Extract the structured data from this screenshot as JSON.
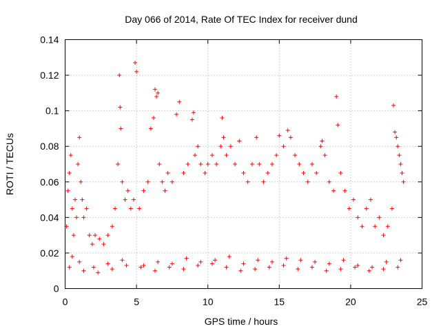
{
  "chart_data": {
    "type": "scatter",
    "title": "Day 066 of 2014, Rate Of TEC Index for receiver dund",
    "xlabel": "GPS time / hours",
    "ylabel": "ROTI / TECUs",
    "xlim": [
      0,
      25
    ],
    "ylim": [
      0,
      0.14
    ],
    "xticks": [
      0,
      5,
      10,
      15,
      20,
      25
    ],
    "xtick_labels": [
      "0",
      "5",
      "10",
      "15",
      "20",
      "25"
    ],
    "yticks": [
      0,
      0.02,
      0.04,
      0.06,
      0.08,
      0.1,
      0.12,
      0.14
    ],
    "ytick_labels": [
      "0",
      "0.02",
      "0.04",
      "0.06",
      "0.08",
      "0.1",
      "0.12",
      "0.14"
    ],
    "grid": true,
    "marker": "+",
    "series": [
      {
        "name": "ROTI",
        "color": "#ff0000",
        "x": [
          0.1,
          0.2,
          0.3,
          0.4,
          0.5,
          0.6,
          0.7,
          0.8,
          0.9,
          1.0,
          1.1,
          1.2,
          1.3,
          1.5,
          1.7,
          1.9,
          2.1,
          2.4,
          2.7,
          3.0,
          3.3,
          3.5,
          3.7,
          3.8,
          3.85,
          3.9,
          4.0,
          4.2,
          4.4,
          4.6,
          4.8,
          4.9,
          5.0,
          5.2,
          5.5,
          5.8,
          6.0,
          6.2,
          6.3,
          6.4,
          6.5,
          6.6,
          6.8,
          7.0,
          7.2,
          7.5,
          7.8,
          8.0,
          8.3,
          8.6,
          8.9,
          9.0,
          9.1,
          9.3,
          9.5,
          9.8,
          10.0,
          10.3,
          10.6,
          10.9,
          11.0,
          11.1,
          11.3,
          11.6,
          11.9,
          12.2,
          12.5,
          12.8,
          13.1,
          13.4,
          13.6,
          13.9,
          14.2,
          14.5,
          14.8,
          15.0,
          15.3,
          15.6,
          15.8,
          16.1,
          16.4,
          16.7,
          17.0,
          17.3,
          17.6,
          17.9,
          18.0,
          18.2,
          18.5,
          18.8,
          19.0,
          19.1,
          19.3,
          19.6,
          19.9,
          20.2,
          20.5,
          20.8,
          21.1,
          21.4,
          21.7,
          22.0,
          22.3,
          22.6,
          22.9,
          23.0,
          23.1,
          23.2,
          23.3,
          23.4,
          23.5,
          23.6,
          23.7,
          0.5,
          1.0,
          2.0,
          3.0,
          4.0,
          5.5,
          6.5,
          7.5,
          8.5,
          9.5,
          10.5,
          11.5,
          12.5,
          13.5,
          14.5,
          15.5,
          16.5,
          17.5,
          18.5,
          19.5,
          20.5,
          21.5,
          22.5,
          23.5,
          0.3,
          1.3,
          2.3,
          3.3,
          4.3,
          5.3,
          6.3,
          7.3,
          8.3,
          9.3,
          10.3,
          11.3,
          12.3,
          13.3,
          14.3,
          15.3,
          16.3,
          17.3,
          18.3,
          19.3,
          20.3,
          21.3,
          22.3,
          23.3
        ],
        "y": [
          0.035,
          0.055,
          0.065,
          0.075,
          0.045,
          0.03,
          0.05,
          0.04,
          0.07,
          0.085,
          0.06,
          0.05,
          0.04,
          0.045,
          0.03,
          0.025,
          0.03,
          0.028,
          0.025,
          0.03,
          0.035,
          0.045,
          0.07,
          0.12,
          0.102,
          0.09,
          0.06,
          0.05,
          0.055,
          0.045,
          0.05,
          0.127,
          0.122,
          0.045,
          0.055,
          0.06,
          0.09,
          0.096,
          0.112,
          0.108,
          0.11,
          0.07,
          0.06,
          0.055,
          0.065,
          0.06,
          0.098,
          0.105,
          0.065,
          0.07,
          0.095,
          0.099,
          0.075,
          0.08,
          0.07,
          0.065,
          0.07,
          0.075,
          0.07,
          0.08,
          0.096,
          0.085,
          0.075,
          0.08,
          0.07,
          0.083,
          0.065,
          0.06,
          0.07,
          0.085,
          0.07,
          0.06,
          0.065,
          0.07,
          0.075,
          0.086,
          0.08,
          0.089,
          0.085,
          0.075,
          0.07,
          0.065,
          0.06,
          0.07,
          0.065,
          0.08,
          0.083,
          0.075,
          0.06,
          0.055,
          0.108,
          0.092,
          0.065,
          0.055,
          0.045,
          0.05,
          0.04,
          0.035,
          0.045,
          0.05,
          0.035,
          0.04,
          0.03,
          0.035,
          0.045,
          0.103,
          0.088,
          0.085,
          0.08,
          0.075,
          0.07,
          0.065,
          0.06,
          0.018,
          0.015,
          0.012,
          0.014,
          0.016,
          0.013,
          0.015,
          0.014,
          0.017,
          0.015,
          0.016,
          0.018,
          0.014,
          0.016,
          0.015,
          0.017,
          0.016,
          0.015,
          0.014,
          0.016,
          0.013,
          0.012,
          0.015,
          0.016,
          0.012,
          0.01,
          0.009,
          0.011,
          0.013,
          0.012,
          0.01,
          0.012,
          0.011,
          0.013,
          0.014,
          0.012,
          0.01,
          0.011,
          0.012,
          0.013,
          0.011,
          0.012,
          0.01,
          0.011,
          0.012,
          0.01,
          0.011,
          0.012
        ]
      }
    ]
  }
}
